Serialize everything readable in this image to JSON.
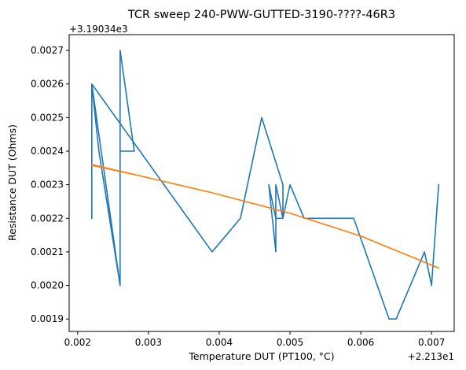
{
  "chart_data": {
    "type": "line",
    "title": "TCR sweep 240-PWW-GUTTED-3190-????-46R3",
    "xlabel": "Temperature DUT (PT100, °C)",
    "ylabel": "Resistance DUT (Ohms)",
    "x_offset_label": "+2.213e1",
    "y_offset_label": "+3.19034e3",
    "xlim": [
      0.00188,
      0.00732
    ],
    "ylim": [
      0.001863,
      0.002747
    ],
    "x_ticks": [
      0.002,
      0.003,
      0.004,
      0.005,
      0.006,
      0.007
    ],
    "x_tick_labels": [
      "0.002",
      "0.003",
      "0.004",
      "0.005",
      "0.006",
      "0.007"
    ],
    "y_ticks": [
      0.0019,
      0.002,
      0.0021,
      0.0022,
      0.0023,
      0.0024,
      0.0025,
      0.0026,
      0.0027
    ],
    "y_tick_labels": [
      "0.0019",
      "0.0020",
      "0.0021",
      "0.0022",
      "0.0023",
      "0.0024",
      "0.0025",
      "0.0026",
      "0.0027"
    ],
    "grid": false,
    "legend": "none",
    "series": [
      {
        "color": "#1f77b4",
        "x": [
          0.0022,
          0.0022,
          0.0026,
          0.0026,
          0.0028,
          0.0028,
          0.0026,
          0.0026,
          0.0023,
          0.0022,
          0.0039,
          0.0043,
          0.0046,
          0.0049,
          0.0049,
          0.0048,
          0.0047,
          0.0048,
          0.0048,
          0.0049,
          0.005,
          0.0052,
          0.0059,
          0.0064,
          0.0065,
          0.0069,
          0.007,
          0.0071
        ],
        "y": [
          0.0022,
          0.0026,
          0.002,
          0.0027,
          0.0024,
          0.0024,
          0.0024,
          0.002,
          0.0024,
          0.0026,
          0.0021,
          0.0022,
          0.0025,
          0.0023,
          0.0022,
          0.0022,
          0.0023,
          0.0021,
          0.0023,
          0.0022,
          0.0023,
          0.0022,
          0.0022,
          0.0019,
          0.0019,
          0.0021,
          0.002,
          0.0023
        ]
      },
      {
        "color": "#ff7f0e",
        "x": [
          0.0022,
          0.0028,
          0.0022,
          0.0039,
          0.005,
          0.006,
          0.0071
        ],
        "y": [
          0.002358,
          0.00233,
          0.00236,
          0.002276,
          0.002215,
          0.002147,
          0.002052
        ]
      }
    ]
  }
}
